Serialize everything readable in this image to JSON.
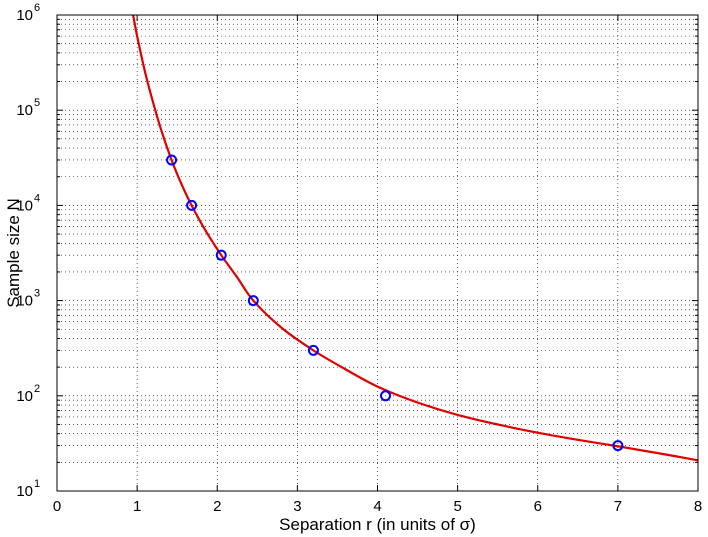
{
  "chart_data": {
    "type": "scatter",
    "title": "",
    "xlabel": "Separation  r  (in units of σ)",
    "ylabel": "Sample size  N",
    "xlim": [
      0,
      8
    ],
    "ylim": [
      10,
      1000000
    ],
    "yscale": "log",
    "grid": true,
    "legend": "none",
    "x_ticks": [
      {
        "value": 0,
        "label": "0"
      },
      {
        "value": 1,
        "label": "1"
      },
      {
        "value": 2,
        "label": "2"
      },
      {
        "value": 3,
        "label": "3"
      },
      {
        "value": 4,
        "label": "4"
      },
      {
        "value": 5,
        "label": "5"
      },
      {
        "value": 6,
        "label": "6"
      },
      {
        "value": 7,
        "label": "7"
      },
      {
        "value": 8,
        "label": "8"
      }
    ],
    "y_ticks": [
      {
        "value": 10,
        "base": "10",
        "exp": "1"
      },
      {
        "value": 100,
        "base": "10",
        "exp": "2"
      },
      {
        "value": 1000,
        "base": "10",
        "exp": "3"
      },
      {
        "value": 10000,
        "base": "10",
        "exp": "4"
      },
      {
        "value": 100000,
        "base": "10",
        "exp": "5"
      },
      {
        "value": 1000000,
        "base": "10",
        "exp": "6"
      }
    ],
    "series": [
      {
        "kind": "points",
        "marker": "circle-open",
        "color": "#0000ff",
        "points": [
          {
            "x": 1.43,
            "y": 30000
          },
          {
            "x": 1.68,
            "y": 10000
          },
          {
            "x": 2.05,
            "y": 3000
          },
          {
            "x": 2.45,
            "y": 1000
          },
          {
            "x": 3.2,
            "y": 300
          },
          {
            "x": 4.1,
            "y": 100
          },
          {
            "x": 7.0,
            "y": 30
          }
        ]
      },
      {
        "kind": "line",
        "color": "#e00000",
        "points": [
          {
            "x": 0.95,
            "y": 1000000
          },
          {
            "x": 1.0,
            "y": 600000
          },
          {
            "x": 1.1,
            "y": 250000
          },
          {
            "x": 1.2,
            "y": 120000
          },
          {
            "x": 1.3,
            "y": 62000
          },
          {
            "x": 1.43,
            "y": 30000
          },
          {
            "x": 1.55,
            "y": 17000
          },
          {
            "x": 1.68,
            "y": 10000
          },
          {
            "x": 1.85,
            "y": 5500
          },
          {
            "x": 2.05,
            "y": 3000
          },
          {
            "x": 2.25,
            "y": 1750
          },
          {
            "x": 2.45,
            "y": 1000
          },
          {
            "x": 2.8,
            "y": 520
          },
          {
            "x": 3.2,
            "y": 300
          },
          {
            "x": 3.6,
            "y": 190
          },
          {
            "x": 4.0,
            "y": 125
          },
          {
            "x": 4.5,
            "y": 85
          },
          {
            "x": 5.0,
            "y": 63
          },
          {
            "x": 5.5,
            "y": 50
          },
          {
            "x": 6.0,
            "y": 41
          },
          {
            "x": 6.5,
            "y": 34.5
          },
          {
            "x": 7.0,
            "y": 29.5
          },
          {
            "x": 7.5,
            "y": 25
          },
          {
            "x": 8.0,
            "y": 21
          }
        ]
      }
    ]
  }
}
